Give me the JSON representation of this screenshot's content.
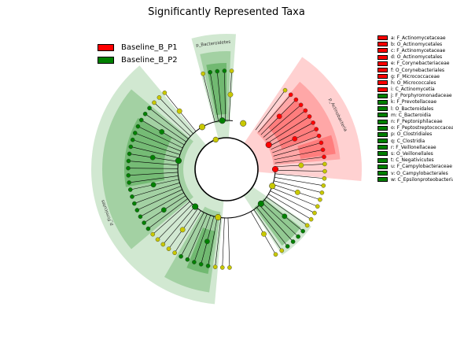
{
  "title": "Significantly Represented Taxa",
  "colors": {
    "P1": "#ff0000",
    "P2": "#008000",
    "neutral": "#c8c800"
  },
  "groups": [
    {
      "key": "P1",
      "label": "Baseline_B_P1",
      "color": "#ff0000"
    },
    {
      "key": "P2",
      "label": "Baseline_B_P2",
      "color": "#008000"
    }
  ],
  "chart_data": {
    "type": "cladogram",
    "title": "Significantly Represented Taxa",
    "legend_position": "right",
    "biomarkers": [
      {
        "id": "a",
        "taxon": "F_Actinomycetaceae",
        "group": "P1"
      },
      {
        "id": "b",
        "taxon": "O_Actinomycetales",
        "group": "P1"
      },
      {
        "id": "c",
        "taxon": "F_Actinomycetaceae",
        "group": "P1"
      },
      {
        "id": "d",
        "taxon": "O_Actinomycetales",
        "group": "P1"
      },
      {
        "id": "e",
        "taxon": "F_Corynebacteriaceae",
        "group": "P1"
      },
      {
        "id": "f",
        "taxon": "O_Corynebacteriales",
        "group": "P1"
      },
      {
        "id": "g",
        "taxon": "F_Micrococcaceae",
        "group": "P1"
      },
      {
        "id": "h",
        "taxon": "O_Micrococcales",
        "group": "P1"
      },
      {
        "id": "i",
        "taxon": "C_Actinomycetia",
        "group": "P1"
      },
      {
        "id": "j",
        "taxon": "F_Porphyromonadaceae",
        "group": "P2"
      },
      {
        "id": "k",
        "taxon": "F_Prevotellaceae",
        "group": "P2"
      },
      {
        "id": "l",
        "taxon": "O_Bacteroidales",
        "group": "P2"
      },
      {
        "id": "m",
        "taxon": "C_Bacteroidia",
        "group": "P2"
      },
      {
        "id": "n",
        "taxon": "F_Peptoniphilaceae",
        "group": "P2"
      },
      {
        "id": "o",
        "taxon": "F_Peptostreptococcaceae",
        "group": "P2"
      },
      {
        "id": "p",
        "taxon": "O_Clostridiales",
        "group": "P2"
      },
      {
        "id": "q",
        "taxon": "C_Clostridia",
        "group": "P2"
      },
      {
        "id": "r",
        "taxon": "F_Veillonellaceae",
        "group": "P2"
      },
      {
        "id": "s",
        "taxon": "O_Veillonellales",
        "group": "P2"
      },
      {
        "id": "t",
        "taxon": "C_Negativicutes",
        "group": "P2"
      },
      {
        "id": "u",
        "taxon": "F_Campylobacteraceae",
        "group": "P2"
      },
      {
        "id": "v",
        "taxon": "O_Campylobacterales",
        "group": "P2"
      },
      {
        "id": "w",
        "taxon": "C_Epsilonproteobacteria",
        "group": "P2"
      }
    ],
    "phylum_sectors": [
      {
        "label": "p_Actinobacteria",
        "group": "P1"
      },
      {
        "label": "p_Bacteroidetes",
        "group": "P2"
      },
      {
        "label": "p_Firmicutes",
        "group": "P2"
      },
      {
        "label": "",
        "group": "P2"
      }
    ]
  }
}
